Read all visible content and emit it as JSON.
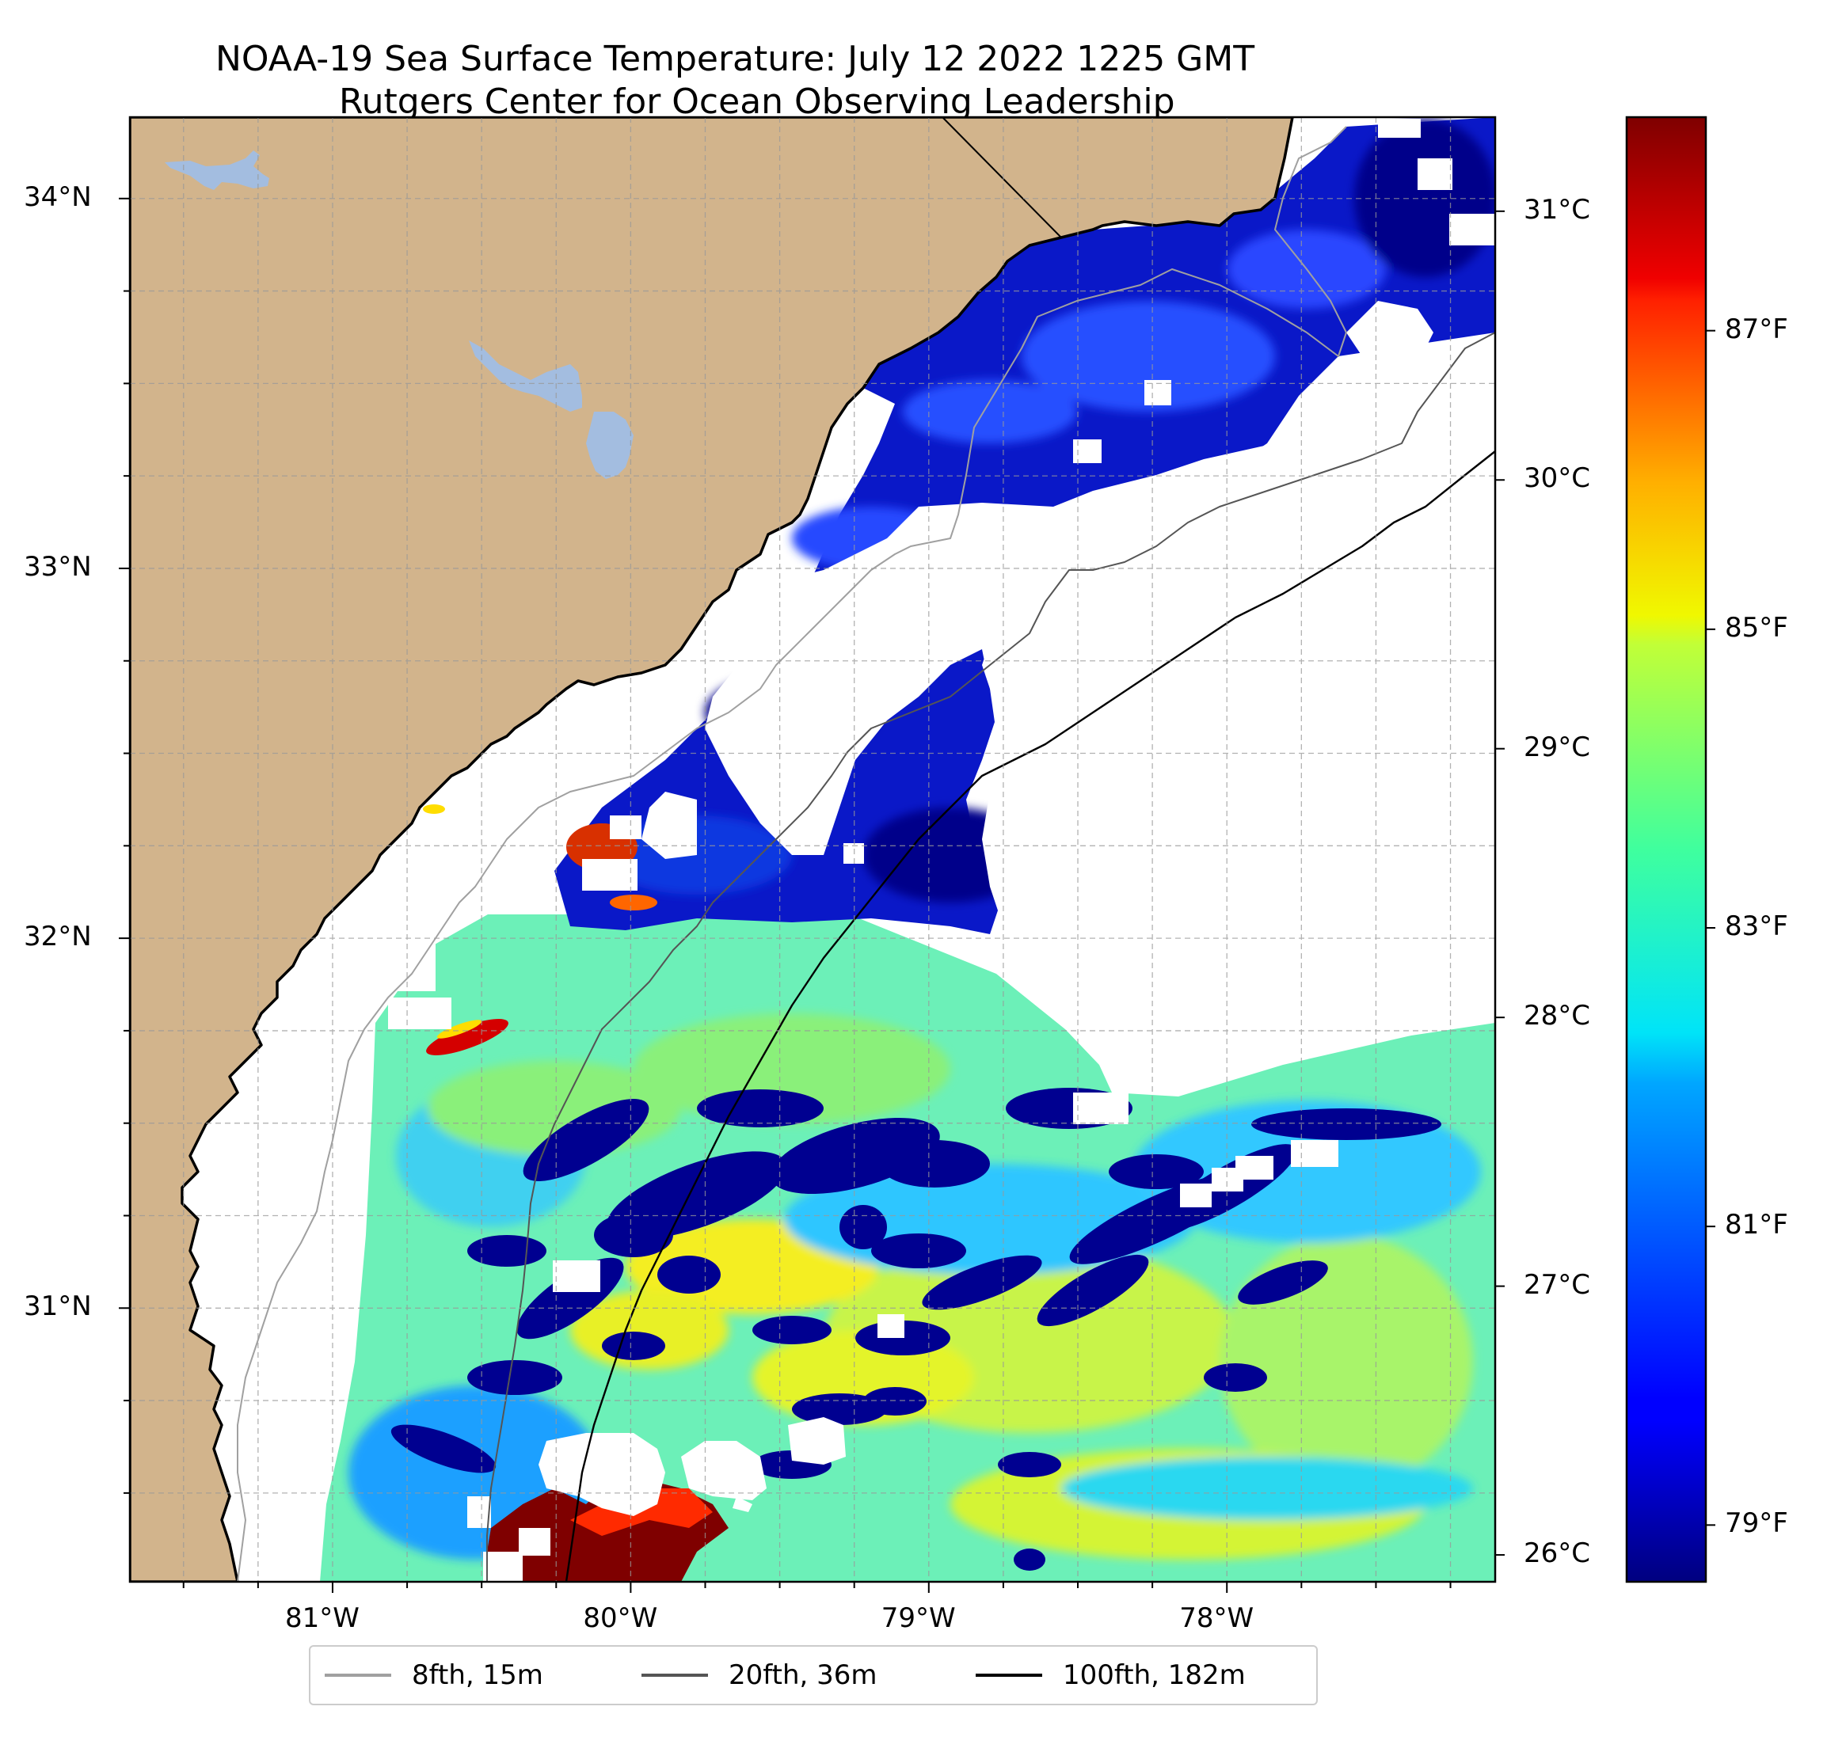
{
  "title": {
    "line1": "NOAA-19 Sea Surface Temperature: July 12 2022 1225 GMT",
    "line2": "Rutgers Center for Ocean Observing Leadership"
  },
  "map": {
    "extent": {
      "lon_min": -81.68,
      "lon_max": -77.1,
      "lat_min": 30.26,
      "lat_max": 34.22
    },
    "lat_ticks": [
      {
        "value": 34,
        "label": "34°N"
      },
      {
        "value": 33,
        "label": "33°N"
      },
      {
        "value": 32,
        "label": "32°N"
      },
      {
        "value": 31,
        "label": "31°N"
      }
    ],
    "lon_ticks": [
      {
        "value": -81,
        "label": "81°W"
      },
      {
        "value": -80,
        "label": "80°W"
      },
      {
        "value": -79,
        "label": "79°W"
      },
      {
        "value": -78,
        "label": "78°W"
      }
    ],
    "gridlines": true,
    "colors": {
      "land": "#d2b48c",
      "lakes": "#a3bde0",
      "no_data": "#ffffff",
      "coastline": "#000000"
    }
  },
  "colorbar": {
    "colormap": "jet",
    "celsius_ticks": [
      {
        "value": 31,
        "label": "31°C"
      },
      {
        "value": 30,
        "label": "30°C"
      },
      {
        "value": 29,
        "label": "29°C"
      },
      {
        "value": 28,
        "label": "28°C"
      },
      {
        "value": 27,
        "label": "27°C"
      },
      {
        "value": 26,
        "label": "26°C"
      }
    ],
    "fahrenheit_ticks": [
      {
        "value": 87,
        "label": "87°F"
      },
      {
        "value": 85,
        "label": "85°F"
      },
      {
        "value": 83,
        "label": "83°F"
      },
      {
        "value": 81,
        "label": "81°F"
      },
      {
        "value": 79,
        "label": "79°F"
      }
    ]
  },
  "legend": {
    "items": [
      {
        "label": "8fth, 15m",
        "color": "#a0a0a0"
      },
      {
        "label": "20fth, 36m",
        "color": "#555555"
      },
      {
        "label": "100fth, 182m",
        "color": "#000000"
      }
    ]
  }
}
